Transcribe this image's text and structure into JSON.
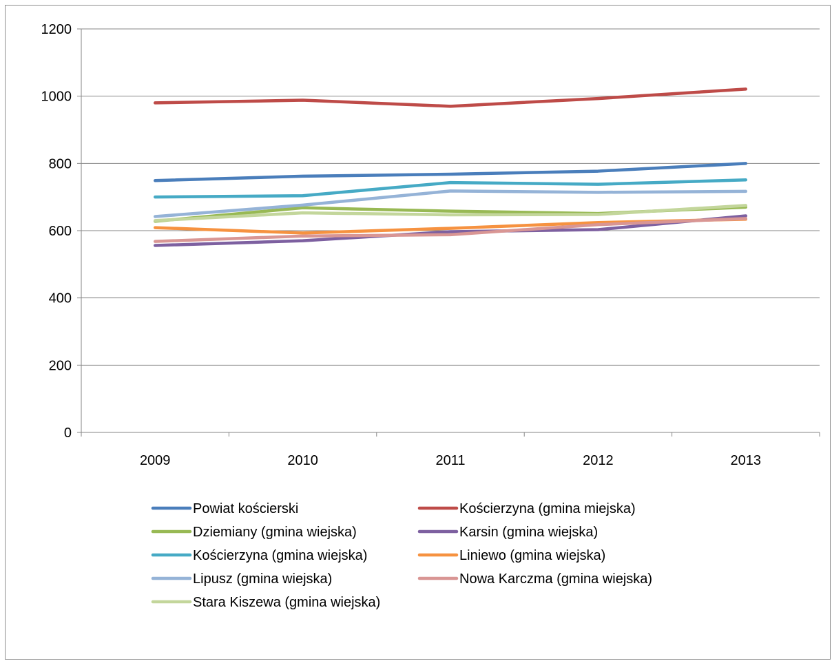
{
  "chart_data": {
    "type": "line",
    "title": "",
    "xlabel": "",
    "ylabel": "",
    "categories": [
      "2009",
      "2010",
      "2011",
      "2012",
      "2013"
    ],
    "ylim": [
      0,
      1200
    ],
    "yticks": [
      "0",
      "200",
      "400",
      "600",
      "800",
      "1000",
      "1200"
    ],
    "grid": true,
    "legend_position": "bottom",
    "series": [
      {
        "name": "Powiat kościerski",
        "color": "#4A7EBB",
        "values": [
          749,
          762,
          768,
          777,
          800
        ]
      },
      {
        "name": "Kościerzyna (gmina miejska)",
        "color": "#BE4B48",
        "values": [
          980,
          988,
          970,
          993,
          1021
        ]
      },
      {
        "name": "Dziemiany (gmina wiejska)",
        "color": "#98B954",
        "values": [
          628,
          668,
          658,
          651,
          670
        ]
      },
      {
        "name": "Karsin (gmina wiejska)",
        "color": "#7D60A0",
        "values": [
          556,
          570,
          597,
          603,
          644
        ]
      },
      {
        "name": "Kościerzyna (gmina wiejska)",
        "color": "#46AAC5",
        "values": [
          700,
          704,
          743,
          738,
          751
        ]
      },
      {
        "name": "Liniewo (gmina wiejska)",
        "color": "#F69240",
        "values": [
          609,
          593,
          607,
          624,
          634
        ]
      },
      {
        "name": "Lipusz (gmina wiejska)",
        "color": "#95B3D7",
        "values": [
          642,
          676,
          718,
          714,
          717
        ]
      },
      {
        "name": "Nowa Karczma (gmina wiejska)",
        "color": "#D99694",
        "values": [
          568,
          584,
          588,
          618,
          636
        ]
      },
      {
        "name": "Stara Kiszewa (gmina wiejska)",
        "color": "#C3D69B",
        "values": [
          630,
          653,
          647,
          648,
          675
        ]
      }
    ]
  }
}
